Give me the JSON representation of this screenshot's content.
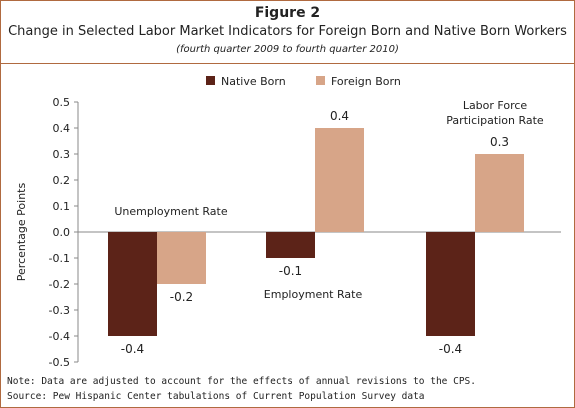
{
  "figure_label": "Figure 2",
  "title": "Change in Selected Labor Market Indicators for Foreign Born and Native Born Workers",
  "subtitle": "(fourth quarter 2009 to fourth quarter 2010)",
  "note": "Note: Data are adjusted to account for the effects of annual revisions to the CPS.",
  "source": "Source: Pew Hispanic Center tabulations of Current Population Survey data",
  "colors": {
    "native": "#5c2318",
    "foreign": "#d7a588",
    "frame": "#b06a40"
  },
  "chart_data": {
    "type": "bar",
    "categories": [
      "Unemployment Rate",
      "Employment Rate",
      "Labor Force Participation Rate"
    ],
    "series": [
      {
        "name": "Native Born",
        "values": [
          -0.4,
          -0.1,
          -0.4
        ]
      },
      {
        "name": "Foreign Born",
        "values": [
          -0.2,
          0.4,
          0.3
        ]
      }
    ],
    "value_labels": [
      [
        "-0.4",
        "-0.1",
        "-0.4"
      ],
      [
        "-0.2",
        "0.4",
        "0.3"
      ]
    ],
    "ylabel": "Percentage Points",
    "ylim": [
      -0.5,
      0.5
    ],
    "yticks": [
      "0.5",
      "0.4",
      "0.3",
      "0.2",
      "0.1",
      "0.0",
      "-0.1",
      "-0.2",
      "-0.3",
      "-0.4",
      "-0.5"
    ],
    "legend_position": "top-center",
    "grid": false
  }
}
